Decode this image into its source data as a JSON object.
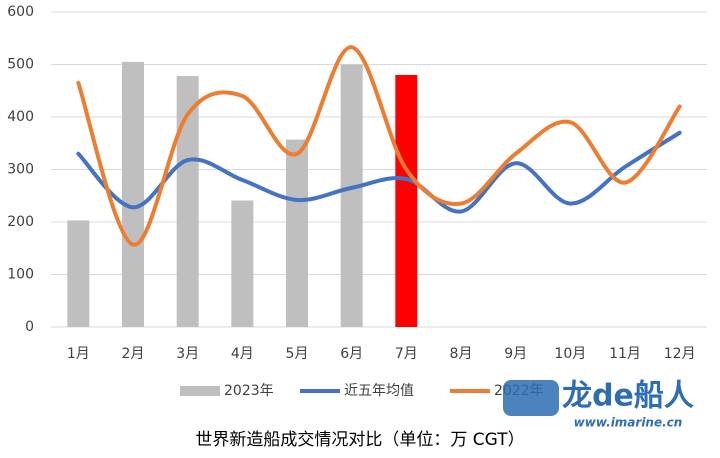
{
  "chart_data": {
    "type": "bar-line",
    "title": "世界新造船成交情况对比（单位：万 CGT）",
    "watermark": {
      "brand": "龙de船人",
      "url": "www.imarine.cn"
    },
    "categories": [
      "1月",
      "2月",
      "3月",
      "4月",
      "5月",
      "6月",
      "7月",
      "8月",
      "9月",
      "10月",
      "11月",
      "12月"
    ],
    "series": [
      {
        "name": "2023年",
        "kind": "bar",
        "color": "#bfbfbf",
        "highlight_color": "#ff0000",
        "highlight_index": 6,
        "values": [
          203,
          505,
          478,
          241,
          357,
          500,
          480,
          null,
          null,
          null,
          null,
          null
        ]
      },
      {
        "name": "近五年均值",
        "kind": "line",
        "color": "#4472c4",
        "values": [
          330,
          228,
          318,
          280,
          242,
          265,
          282,
          220,
          312,
          235,
          305,
          370
        ]
      },
      {
        "name": "2022年",
        "kind": "line",
        "color": "#ed7d31",
        "values": [
          465,
          157,
          405,
          440,
          330,
          533,
          300,
          235,
          330,
          390,
          275,
          420
        ]
      }
    ],
    "ylim": [
      0,
      600
    ],
    "yticks": [
      0,
      100,
      200,
      300,
      400,
      500,
      600
    ],
    "grid": true
  }
}
